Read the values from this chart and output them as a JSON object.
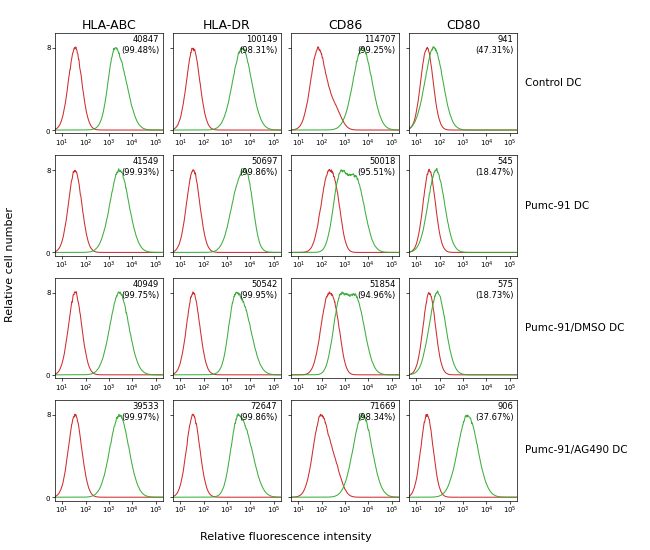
{
  "col_headers": [
    "HLA-ABC",
    "HLA-DR",
    "CD86",
    "CD80"
  ],
  "row_labels": [
    "Control DC",
    "Pumc-91 DC",
    "Pumc-91/DMSO DC",
    "Pumc-91/AG490 DC"
  ],
  "xlabel": "Relative fluorescence intensity",
  "ylabel": "Relative cell number",
  "annotations": [
    [
      {
        "count": "40847",
        "pct": "(99.48%)"
      },
      {
        "count": "100149",
        "pct": "(98.31%)"
      },
      {
        "count": "114707",
        "pct": "(99.25%)"
      },
      {
        "count": "941",
        "pct": "(47.31%)"
      }
    ],
    [
      {
        "count": "41549",
        "pct": "(99.93%)"
      },
      {
        "count": "50697",
        "pct": "(99.86%)"
      },
      {
        "count": "50018",
        "pct": "(95.51%)"
      },
      {
        "count": "545",
        "pct": "(18.47%)"
      }
    ],
    [
      {
        "count": "40949",
        "pct": "(99.75%)"
      },
      {
        "count": "50542",
        "pct": "(99.95%)"
      },
      {
        "count": "51854",
        "pct": "(94.96%)"
      },
      {
        "count": "575",
        "pct": "(18.73%)"
      }
    ],
    [
      {
        "count": "39533",
        "pct": "(99.97%)"
      },
      {
        "count": "72647",
        "pct": "(99.86%)"
      },
      {
        "count": "71669",
        "pct": "(98.34%)"
      },
      {
        "count": "906",
        "pct": "(37.67%)"
      }
    ]
  ],
  "red_color": "#cc2222",
  "green_color": "#33aa33",
  "annot_fontsize": 6.0,
  "title_fontsize": 9,
  "row_label_fontsize": 7.5,
  "axis_label_fontsize": 8,
  "tick_fontsize": 5,
  "ytop_label": "8",
  "panel_params": {
    "0_0": {
      "rc": 1.55,
      "rw": 0.28,
      "rh": 1.0,
      "gc": 3.45,
      "gw": 0.38,
      "gh": 0.78,
      "g2c": 3.15,
      "g2w": 0.22,
      "g2h": 0.35
    },
    "0_1": {
      "rc": 1.55,
      "rw": 0.28,
      "rh": 1.0,
      "gc": 3.65,
      "gw": 0.4,
      "gh": 0.85,
      "g2c": -1,
      "g2w": 0,
      "g2h": 0
    },
    "0_2": {
      "rc": 1.85,
      "rw": 0.32,
      "rh": 1.0,
      "gc": 3.75,
      "gw": 0.4,
      "gh": 0.82,
      "g2c": -1,
      "g2w": 0,
      "g2h": 0,
      "r2c": 2.55,
      "r2w": 0.28,
      "r2h": 0.25
    },
    "0_3": {
      "rc": 1.45,
      "rw": 0.26,
      "rh": 0.72,
      "gc": 1.75,
      "gw": 0.38,
      "gh": 1.0,
      "g2c": -1,
      "g2w": 0,
      "g2h": 0
    },
    "1_0": {
      "rc": 1.55,
      "rw": 0.28,
      "rh": 1.0,
      "gc": 3.45,
      "gw": 0.4,
      "gh": 0.82,
      "g2c": -1,
      "g2w": 0,
      "g2h": 0
    },
    "1_1": {
      "rc": 1.55,
      "rw": 0.28,
      "rh": 1.0,
      "gc": 3.55,
      "gw": 0.38,
      "gh": 0.85,
      "g2c": 3.95,
      "g2w": 0.22,
      "g2h": 0.38
    },
    "1_2": {
      "rc": 2.25,
      "rw": 0.3,
      "rh": 1.0,
      "gc": 3.45,
      "gw": 0.38,
      "gh": 0.82,
      "g2c": 2.75,
      "g2w": 0.28,
      "g2h": 0.72,
      "r2c": 2.65,
      "r2w": 0.22,
      "r2h": 0.45
    },
    "1_3": {
      "rc": 1.55,
      "rw": 0.26,
      "rh": 0.65,
      "gc": 1.85,
      "gw": 0.35,
      "gh": 1.0,
      "g2c": -1,
      "g2w": 0,
      "g2h": 0
    },
    "2_0": {
      "rc": 1.55,
      "rw": 0.28,
      "rh": 1.0,
      "gc": 3.45,
      "gw": 0.4,
      "gh": 0.85,
      "g2c": -1,
      "g2w": 0,
      "g2h": 0
    },
    "2_1": {
      "rc": 1.55,
      "rw": 0.28,
      "rh": 1.0,
      "gc": 3.65,
      "gw": 0.4,
      "gh": 0.88,
      "g2c": 3.25,
      "g2w": 0.22,
      "g2h": 0.4
    },
    "2_2": {
      "rc": 2.25,
      "rw": 0.3,
      "rh": 1.0,
      "gc": 3.45,
      "gw": 0.38,
      "gh": 0.82,
      "g2c": 2.75,
      "g2w": 0.28,
      "g2h": 0.68,
      "r2c": 2.65,
      "r2w": 0.22,
      "r2h": 0.42
    },
    "2_3": {
      "rc": 1.55,
      "rw": 0.26,
      "rh": 0.65,
      "gc": 1.9,
      "gw": 0.35,
      "gh": 1.0,
      "g2c": -1,
      "g2w": 0,
      "g2h": 0
    },
    "3_0": {
      "rc": 1.55,
      "rw": 0.28,
      "rh": 1.0,
      "gc": 3.45,
      "gw": 0.4,
      "gh": 0.85,
      "g2c": -1,
      "g2w": 0,
      "g2h": 0
    },
    "3_1": {
      "rc": 1.55,
      "rw": 0.28,
      "rh": 1.0,
      "gc": 3.75,
      "gw": 0.4,
      "gh": 0.88,
      "g2c": 3.35,
      "g2w": 0.25,
      "g2h": 0.48
    },
    "3_2": {
      "rc": 1.95,
      "rw": 0.32,
      "rh": 1.0,
      "gc": 3.75,
      "gw": 0.4,
      "gh": 0.85,
      "g2c": -1,
      "g2w": 0,
      "g2h": 0,
      "r2c": 2.55,
      "r2w": 0.28,
      "r2h": 0.35
    },
    "3_3": {
      "rc": 1.45,
      "rw": 0.26,
      "rh": 0.58,
      "gc": 3.2,
      "gw": 0.42,
      "gh": 1.0,
      "g2c": -1,
      "g2w": 0,
      "g2h": 0
    }
  }
}
